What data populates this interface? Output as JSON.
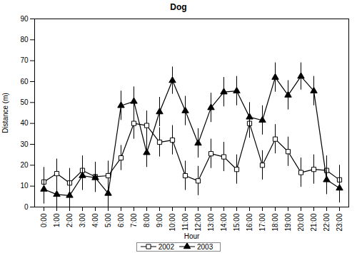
{
  "chart_data": {
    "type": "line",
    "title": "Dog",
    "x_label": "Hour",
    "y_label": "Distance (m)",
    "categories": [
      "0:00",
      "1:00",
      "2:00",
      "3:00",
      "4:00",
      "5:00",
      "6:00",
      "7:00",
      "8:00",
      "9:00",
      "10:00",
      "11:00",
      "12:00",
      "13:00",
      "14:00",
      "15:00",
      "16:00",
      "17:00",
      "18:00",
      "19:00",
      "20:00",
      "21:00",
      "22:00",
      "23:00"
    ],
    "series": [
      {
        "name": "2002",
        "color": "#000000",
        "marker": "square_open",
        "values": [
          12,
          16,
          11.5,
          17.5,
          14.5,
          15,
          23.5,
          40,
          39,
          31,
          32,
          15,
          12.5,
          25.5,
          24,
          18,
          40,
          20,
          32.5,
          26.5,
          16.5,
          18,
          17.5,
          13
        ],
        "errors": [
          7,
          7,
          7,
          7,
          7,
          7,
          6,
          7.5,
          7,
          7,
          7,
          7,
          7,
          7,
          7,
          7,
          7,
          7,
          7,
          7,
          7,
          7,
          7,
          7
        ]
      },
      {
        "name": "2003",
        "color": "#000000",
        "marker": "triangle",
        "values": [
          8.5,
          6,
          5.5,
          15,
          14,
          6.5,
          48.5,
          50.5,
          26,
          45.5,
          60.5,
          46,
          30.5,
          47.5,
          55,
          55.5,
          43,
          41.5,
          62,
          53.5,
          62.5,
          55.5,
          13,
          9
        ],
        "errors": [
          7,
          7,
          7,
          7,
          7,
          7,
          7,
          7,
          7,
          7,
          6.5,
          7,
          7,
          7,
          7,
          7,
          7,
          7,
          7,
          7,
          6.5,
          7,
          7,
          7
        ]
      }
    ],
    "ylim": [
      0,
      90
    ],
    "yticks": [
      0,
      10,
      20,
      30,
      40,
      50,
      60,
      70,
      80,
      90
    ],
    "legend": "bottom",
    "grid": false
  }
}
